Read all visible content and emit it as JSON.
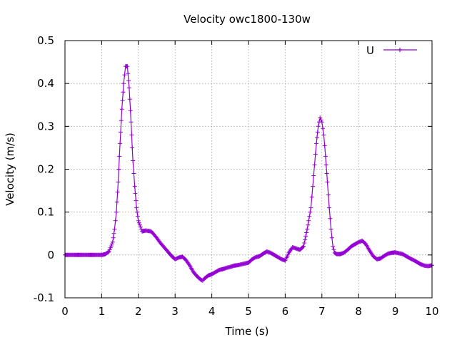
{
  "chart_data": {
    "type": "line",
    "title": "Velocity owc1800-130w",
    "xlabel": "Time (s)",
    "ylabel": "Velocity (m/s)",
    "xlim": [
      0,
      10
    ],
    "ylim": [
      -0.1,
      0.5
    ],
    "xticks": [
      "0",
      "1",
      "2",
      "3",
      "4",
      "5",
      "6",
      "7",
      "8",
      "9",
      "10"
    ],
    "yticks": [
      "-0.1",
      "0",
      "0.1",
      "0.2",
      "0.3",
      "0.4",
      "0.5"
    ],
    "grid": true,
    "legend_position": "top-right",
    "series": [
      {
        "name": "U",
        "color": "#9400d3",
        "marker": "plus",
        "x": [
          0,
          0.5,
          1.0,
          1.1,
          1.2,
          1.3,
          1.35,
          1.4,
          1.45,
          1.5,
          1.55,
          1.6,
          1.65,
          1.7,
          1.75,
          1.8,
          1.85,
          1.9,
          1.95,
          2.0,
          2.1,
          2.2,
          2.35,
          2.5,
          2.6,
          2.7,
          2.8,
          2.9,
          3.0,
          3.1,
          3.2,
          3.3,
          3.4,
          3.5,
          3.6,
          3.7,
          3.75,
          3.8,
          3.9,
          4.0,
          4.1,
          4.2,
          4.3,
          4.4,
          4.5,
          4.6,
          4.7,
          4.8,
          4.9,
          5.0,
          5.1,
          5.2,
          5.3,
          5.4,
          5.5,
          5.6,
          5.7,
          5.8,
          5.9,
          6.0,
          6.1,
          6.15,
          6.2,
          6.3,
          6.4,
          6.5,
          6.6,
          6.7,
          6.75,
          6.8,
          6.85,
          6.9,
          6.95,
          7.0,
          7.05,
          7.1,
          7.15,
          7.2,
          7.25,
          7.3,
          7.35,
          7.4,
          7.5,
          7.6,
          7.7,
          7.8,
          7.9,
          8.0,
          8.1,
          8.2,
          8.3,
          8.4,
          8.5,
          8.6,
          8.7,
          8.8,
          8.9,
          9.0,
          9.1,
          9.2,
          9.3,
          9.4,
          9.5,
          9.6,
          9.7,
          9.8,
          9.9,
          10.0
        ],
        "y": [
          0,
          0,
          0,
          0.002,
          0.008,
          0.03,
          0.06,
          0.1,
          0.17,
          0.26,
          0.34,
          0.4,
          0.44,
          0.44,
          0.39,
          0.31,
          0.22,
          0.16,
          0.11,
          0.08,
          0.055,
          0.057,
          0.055,
          0.04,
          0.028,
          0.018,
          0.008,
          -0.002,
          -0.01,
          -0.006,
          -0.004,
          -0.012,
          -0.025,
          -0.04,
          -0.05,
          -0.058,
          -0.06,
          -0.055,
          -0.048,
          -0.045,
          -0.04,
          -0.035,
          -0.033,
          -0.03,
          -0.028,
          -0.025,
          -0.024,
          -0.022,
          -0.02,
          -0.018,
          -0.01,
          -0.005,
          -0.003,
          0.003,
          0.008,
          0.005,
          0,
          -0.005,
          -0.01,
          -0.013,
          0.005,
          0.012,
          0.018,
          0.015,
          0.012,
          0.02,
          0.06,
          0.11,
          0.16,
          0.21,
          0.26,
          0.3,
          0.32,
          0.31,
          0.28,
          0.23,
          0.17,
          0.11,
          0.06,
          0.02,
          0.005,
          0.002,
          0.002,
          0.005,
          0.012,
          0.02,
          0.025,
          0.03,
          0.033,
          0.025,
          0.01,
          -0.003,
          -0.01,
          -0.008,
          -0.002,
          0.003,
          0.005,
          0.006,
          0.004,
          0.002,
          -0.003,
          -0.008,
          -0.012,
          -0.017,
          -0.022,
          -0.025,
          -0.026,
          -0.024
        ]
      }
    ]
  }
}
